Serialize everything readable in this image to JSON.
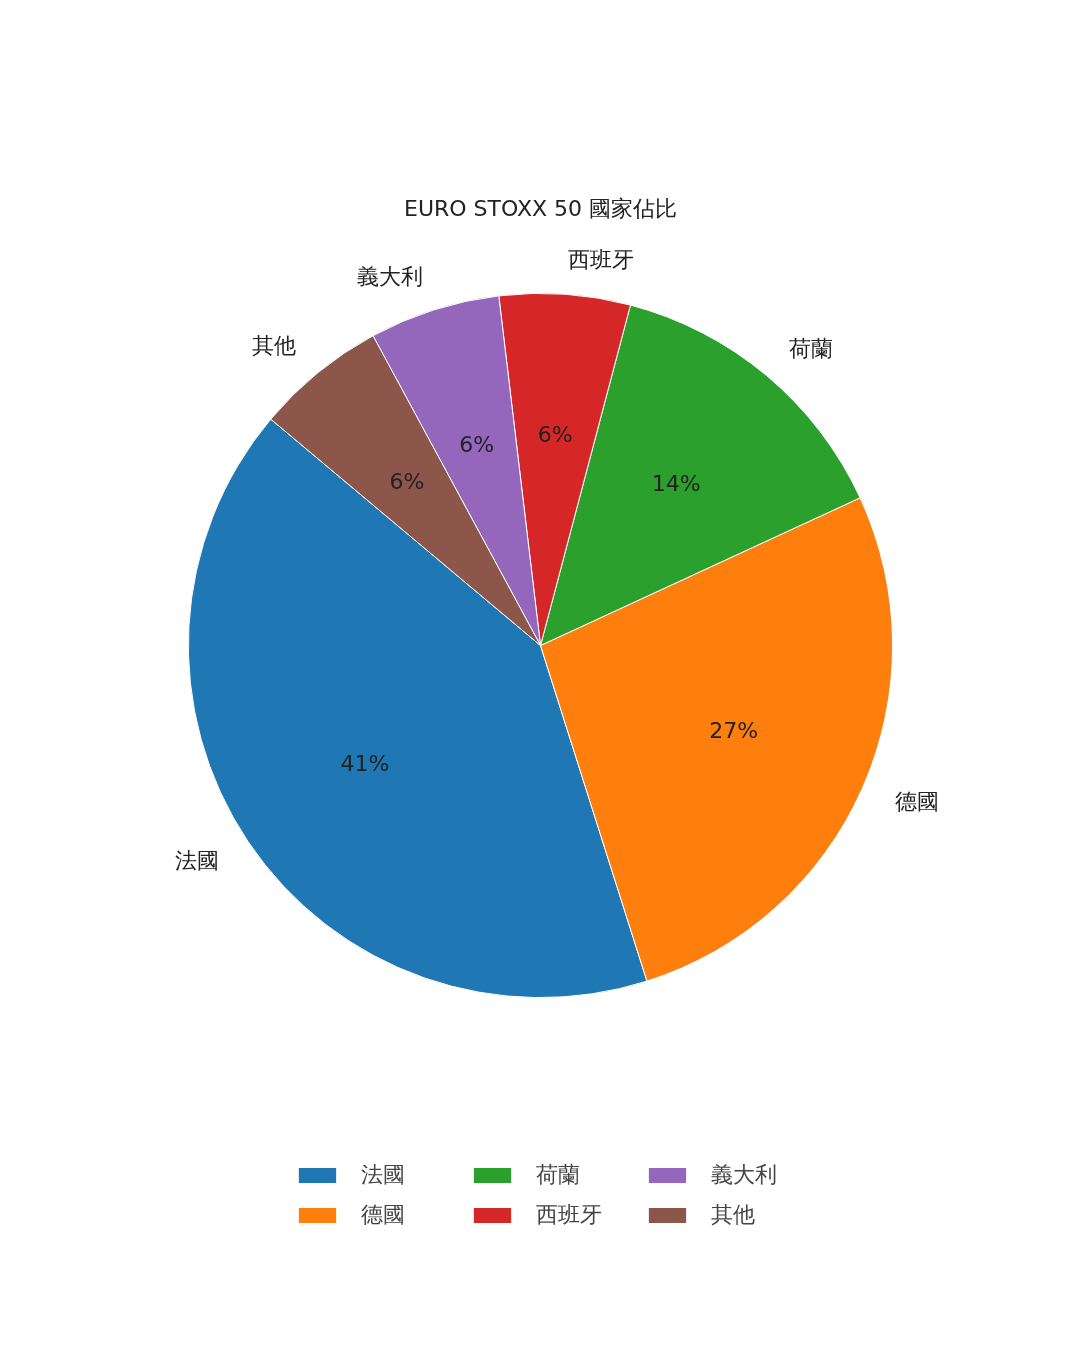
{
  "chart_data": {
    "type": "pie",
    "title": "EURO STOXX 50 國家佔比",
    "categories": [
      "法國",
      "德國",
      "荷蘭",
      "西班牙",
      "義大利",
      "其他"
    ],
    "values": [
      41,
      27,
      14,
      6,
      6,
      6
    ],
    "value_labels": [
      "41%",
      "27%",
      "14%",
      "6%",
      "6%",
      "6%"
    ],
    "colors": [
      "#1f77b4",
      "#ff7f0e",
      "#2ca02c",
      "#d62728",
      "#9467bd",
      "#8c564b"
    ],
    "legend": "bottom"
  }
}
